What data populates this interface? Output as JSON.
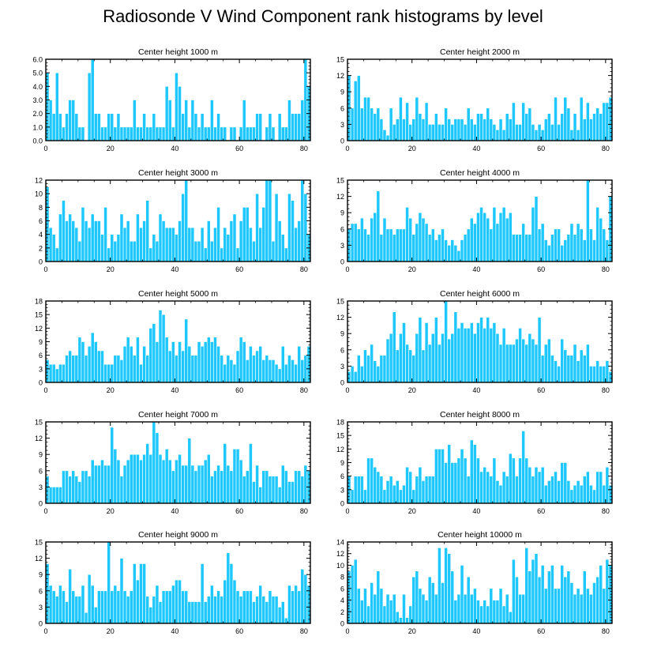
{
  "title": "Radiosonde V Wind Component rank histograms by level",
  "style": {
    "bar_color": "#1ec8ff",
    "bar_edge": "#ffffff",
    "axis_color": "#000000"
  },
  "chart_data": [
    {
      "type": "bar",
      "title": "Center height 1000 m",
      "xlim": [
        0,
        82
      ],
      "ylim": [
        0,
        6
      ],
      "yticks": [
        0,
        1,
        2,
        3,
        4,
        5,
        6
      ],
      "ytick_labels": [
        "0.0",
        "1.0",
        "2.0",
        "3.0",
        "4.0",
        "5.0",
        "6.0"
      ],
      "xticks": [
        0,
        20,
        40,
        60,
        80
      ],
      "values": [
        5,
        3,
        2,
        5,
        2,
        1,
        2,
        3,
        3,
        2,
        1,
        1,
        0,
        5,
        6,
        2,
        2,
        1,
        1,
        2,
        2,
        1,
        2,
        1,
        1,
        1,
        1,
        3,
        1,
        1,
        2,
        1,
        1,
        2,
        1,
        1,
        1,
        4,
        3,
        1,
        5,
        4,
        2,
        3,
        1,
        3,
        2,
        1,
        2,
        1,
        1,
        3,
        1,
        2,
        1,
        1,
        0,
        1,
        1,
        0,
        1,
        3,
        1,
        1,
        1,
        2,
        2,
        0,
        1,
        2,
        1,
        0,
        2,
        1,
        1,
        3,
        2,
        2,
        2,
        3,
        6,
        4
      ]
    },
    {
      "type": "bar",
      "title": "Center height 2000 m",
      "xlim": [
        0,
        82
      ],
      "ylim": [
        0,
        15
      ],
      "yticks": [
        0,
        3,
        6,
        9,
        12,
        15
      ],
      "ytick_labels": [
        "0",
        "3",
        "6",
        "9",
        "12",
        "15"
      ],
      "xticks": [
        0,
        20,
        40,
        60,
        80
      ],
      "values": [
        12,
        6,
        11,
        12,
        6,
        8,
        8,
        6,
        5,
        6,
        4,
        2,
        1,
        6,
        3,
        4,
        8,
        4,
        7,
        3,
        4,
        8,
        5,
        4,
        7,
        3,
        3,
        5,
        3,
        3,
        6,
        4,
        3,
        4,
        4,
        4,
        3,
        6,
        4,
        3,
        5,
        5,
        4,
        6,
        4,
        3,
        2,
        4,
        2,
        5,
        4,
        7,
        3,
        3,
        7,
        5,
        6,
        3,
        2,
        3,
        2,
        4,
        5,
        3,
        8,
        3,
        5,
        8,
        6,
        2,
        5,
        2,
        8,
        4,
        7,
        4,
        5,
        6,
        5,
        7,
        7,
        8
      ]
    },
    {
      "type": "bar",
      "title": "Center height 3000 m",
      "xlim": [
        0,
        82
      ],
      "ylim": [
        0,
        12
      ],
      "yticks": [
        0,
        2,
        4,
        6,
        8,
        10,
        12
      ],
      "ytick_labels": [
        "0",
        "2",
        "4",
        "6",
        "8",
        "10",
        "12"
      ],
      "xticks": [
        0,
        20,
        40,
        60,
        80
      ],
      "values": [
        11,
        5,
        4,
        2,
        7,
        9,
        6,
        7,
        6,
        5,
        3,
        8,
        6,
        5,
        7,
        6,
        6,
        4,
        8,
        2,
        4,
        3,
        4,
        7,
        5,
        6,
        3,
        3,
        7,
        5,
        6,
        9,
        2,
        4,
        3,
        7,
        6,
        5,
        5,
        5,
        4,
        6,
        10,
        12,
        5,
        5,
        3,
        3,
        5,
        2,
        6,
        3,
        5,
        8,
        2,
        5,
        4,
        6,
        7,
        2,
        6,
        8,
        8,
        5,
        3,
        10,
        5,
        8,
        12,
        12,
        3,
        10,
        6,
        4,
        2,
        10,
        9,
        5,
        6,
        12,
        10,
        4
      ]
    },
    {
      "type": "bar",
      "title": "Center height 4000 m",
      "xlim": [
        0,
        82
      ],
      "ylim": [
        0,
        15
      ],
      "yticks": [
        0,
        3,
        6,
        9,
        12,
        15
      ],
      "ytick_labels": [
        "0",
        "3",
        "6",
        "9",
        "12",
        "15"
      ],
      "xticks": [
        0,
        20,
        40,
        60,
        80
      ],
      "values": [
        6,
        7,
        7,
        6,
        8,
        6,
        5,
        8,
        9,
        13,
        5,
        8,
        6,
        6,
        5,
        6,
        6,
        6,
        10,
        8,
        5,
        7,
        9,
        8,
        7,
        5,
        6,
        4,
        5,
        6,
        4,
        3,
        4,
        3,
        2,
        4,
        5,
        6,
        8,
        7,
        9,
        10,
        9,
        8,
        6,
        10,
        7,
        9,
        10,
        8,
        9,
        5,
        5,
        5,
        7,
        5,
        5,
        10,
        12,
        6,
        7,
        4,
        3,
        5,
        6,
        6,
        3,
        4,
        5,
        7,
        5,
        7,
        6,
        4,
        15,
        6,
        4,
        10,
        8,
        6,
        4,
        12
      ]
    },
    {
      "type": "bar",
      "title": "Center height 5000 m",
      "xlim": [
        0,
        82
      ],
      "ylim": [
        0,
        18
      ],
      "yticks": [
        0,
        3,
        6,
        9,
        12,
        15,
        18
      ],
      "ytick_labels": [
        "0",
        "3",
        "6",
        "9",
        "12",
        "15",
        "18"
      ],
      "xticks": [
        0,
        20,
        40,
        60,
        80
      ],
      "values": [
        5,
        4,
        4,
        3,
        4,
        4,
        6,
        7,
        6,
        6,
        10,
        9,
        6,
        8,
        11,
        9,
        7,
        7,
        4,
        4,
        4,
        6,
        6,
        5,
        8,
        10,
        8,
        6,
        10,
        4,
        8,
        6,
        12,
        13,
        9,
        16,
        15,
        10,
        7,
        9,
        6,
        9,
        7,
        14,
        8,
        6,
        6,
        9,
        8,
        9,
        10,
        9,
        10,
        8,
        6,
        4,
        6,
        5,
        4,
        7,
        10,
        9,
        5,
        8,
        6,
        7,
        8,
        5,
        6,
        5,
        5,
        4,
        3,
        8,
        4,
        6,
        5,
        4,
        8,
        5,
        6,
        8
      ]
    },
    {
      "type": "bar",
      "title": "Center height 6000 m",
      "xlim": [
        0,
        82
      ],
      "ylim": [
        0,
        15
      ],
      "yticks": [
        0,
        3,
        6,
        9,
        12,
        15
      ],
      "ytick_labels": [
        "0",
        "3",
        "6",
        "9",
        "12",
        "15"
      ],
      "xticks": [
        0,
        20,
        40,
        60,
        80
      ],
      "values": [
        2,
        3,
        2,
        5,
        3,
        6,
        5,
        7,
        4,
        3,
        5,
        5,
        8,
        9,
        13,
        6,
        9,
        11,
        7,
        6,
        5,
        9,
        12,
        6,
        11,
        7,
        9,
        12,
        7,
        9,
        15,
        8,
        9,
        13,
        10,
        11,
        10,
        10,
        11,
        9,
        11,
        12,
        10,
        12,
        10,
        11,
        9,
        7,
        10,
        7,
        7,
        7,
        8,
        10,
        8,
        7,
        9,
        8,
        7,
        12,
        5,
        7,
        8,
        5,
        4,
        3,
        8,
        6,
        5,
        5,
        7,
        4,
        6,
        5,
        7,
        3,
        3,
        4,
        3,
        3,
        4,
        2
      ]
    },
    {
      "type": "bar",
      "title": "Center height 7000 m",
      "xlim": [
        0,
        82
      ],
      "ylim": [
        0,
        15
      ],
      "yticks": [
        0,
        3,
        6,
        9,
        12,
        15
      ],
      "ytick_labels": [
        "0",
        "3",
        "6",
        "9",
        "12",
        "15"
      ],
      "xticks": [
        0,
        20,
        40,
        60,
        80
      ],
      "values": [
        5,
        3,
        3,
        3,
        3,
        6,
        6,
        5,
        6,
        5,
        4,
        6,
        6,
        5,
        8,
        7,
        7,
        8,
        7,
        7,
        14,
        10,
        8,
        5,
        7,
        8,
        9,
        9,
        9,
        8,
        9,
        11,
        9,
        15,
        13,
        9,
        8,
        10,
        8,
        6,
        8,
        9,
        7,
        7,
        12,
        7,
        6,
        7,
        7,
        8,
        9,
        5,
        6,
        7,
        6,
        11,
        7,
        6,
        10,
        10,
        8,
        5,
        6,
        11,
        4,
        7,
        3,
        6,
        6,
        5,
        5,
        5,
        3,
        7,
        6,
        4,
        4,
        6,
        6,
        5,
        7,
        6
      ]
    },
    {
      "type": "bar",
      "title": "Center height 8000 m",
      "xlim": [
        0,
        82
      ],
      "ylim": [
        0,
        18
      ],
      "yticks": [
        0,
        3,
        6,
        9,
        12,
        15,
        18
      ],
      "ytick_labels": [
        "0",
        "3",
        "6",
        "9",
        "12",
        "15",
        "18"
      ],
      "xticks": [
        0,
        20,
        40,
        60,
        80
      ],
      "values": [
        6,
        3,
        6,
        6,
        6,
        3,
        10,
        10,
        8,
        7,
        6,
        3,
        5,
        6,
        4,
        5,
        3,
        4,
        8,
        7,
        3,
        6,
        8,
        5,
        6,
        6,
        6,
        12,
        12,
        12,
        9,
        13,
        9,
        9,
        10,
        12,
        10,
        6,
        14,
        13,
        10,
        7,
        8,
        7,
        6,
        10,
        5,
        4,
        7,
        6,
        11,
        10,
        6,
        10,
        16,
        10,
        8,
        6,
        8,
        7,
        8,
        4,
        5,
        6,
        7,
        5,
        9,
        9,
        5,
        3,
        4,
        5,
        4,
        6,
        7,
        4,
        3,
        7,
        7,
        4,
        8,
        4
      ]
    },
    {
      "type": "bar",
      "title": "Center height 9000 m",
      "xlim": [
        0,
        82
      ],
      "ylim": [
        0,
        15
      ],
      "yticks": [
        0,
        3,
        6,
        9,
        12,
        15
      ],
      "ytick_labels": [
        "0",
        "3",
        "6",
        "9",
        "12",
        "15"
      ],
      "xticks": [
        0,
        20,
        40,
        60,
        80
      ],
      "values": [
        11,
        7,
        6,
        5,
        7,
        6,
        4,
        10,
        6,
        5,
        5,
        7,
        2,
        9,
        7,
        3,
        6,
        6,
        6,
        15,
        6,
        7,
        6,
        12,
        6,
        5,
        6,
        11,
        8,
        11,
        11,
        5,
        3,
        5,
        7,
        4,
        6,
        6,
        6,
        7,
        8,
        8,
        6,
        6,
        4,
        4,
        4,
        4,
        11,
        4,
        5,
        7,
        5,
        6,
        5,
        8,
        13,
        11,
        8,
        6,
        5,
        6,
        6,
        6,
        4,
        5,
        7,
        5,
        4,
        6,
        5,
        5,
        3,
        4,
        1,
        7,
        6,
        7,
        6,
        10,
        9,
        7
      ]
    },
    {
      "type": "bar",
      "title": "Center height 10000 m",
      "xlim": [
        0,
        82
      ],
      "ylim": [
        0,
        14
      ],
      "yticks": [
        0,
        2,
        4,
        6,
        8,
        10,
        12,
        14
      ],
      "ytick_labels": [
        "0",
        "2",
        "4",
        "6",
        "8",
        "10",
        "12",
        "14"
      ],
      "xticks": [
        0,
        20,
        40,
        60,
        80
      ],
      "values": [
        9,
        10,
        11,
        6,
        4,
        6,
        3,
        7,
        5,
        9,
        6,
        3,
        5,
        4,
        5,
        2,
        1,
        5,
        1,
        3,
        8,
        9,
        6,
        5,
        4,
        8,
        7,
        5,
        13,
        7,
        13,
        12,
        9,
        4,
        5,
        10,
        5,
        8,
        5,
        6,
        4,
        3,
        4,
        3,
        6,
        4,
        4,
        6,
        3,
        5,
        2,
        11,
        8,
        5,
        5,
        13,
        9,
        11,
        12,
        8,
        10,
        6,
        9,
        10,
        6,
        6,
        10,
        8,
        9,
        7,
        5,
        6,
        5,
        9,
        6,
        5,
        7,
        8,
        10,
        6,
        11,
        10
      ]
    }
  ]
}
